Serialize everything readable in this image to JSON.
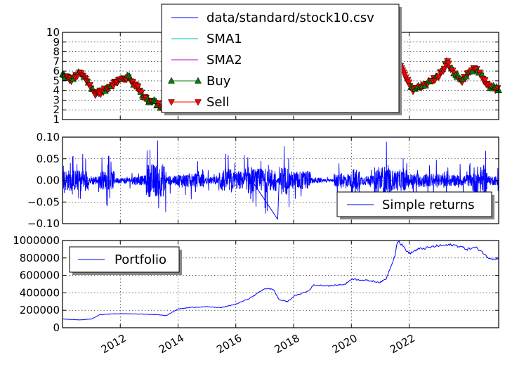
{
  "chart_data": [
    {
      "type": "line",
      "panel": "price",
      "ylim": [
        1,
        10
      ],
      "yticks": [
        "1",
        "2",
        "3",
        "4",
        "5",
        "6",
        "7",
        "8",
        "9",
        "10"
      ],
      "grid": true,
      "legend_placement": "top-center",
      "series": [
        {
          "name": "data/standard/stock10.csv",
          "color": "#0000ff",
          "points": [
            [
              2010.0,
              5.6
            ],
            [
              2010.3,
              5.1
            ],
            [
              2010.6,
              5.8
            ],
            [
              2010.9,
              4.8
            ],
            [
              2011.1,
              3.7
            ],
            [
              2011.4,
              3.9
            ],
            [
              2011.7,
              4.6
            ],
            [
              2012.0,
              5.1
            ],
            [
              2012.3,
              5.4
            ],
            [
              2012.5,
              4.6
            ],
            [
              2012.7,
              4.0
            ],
            [
              2012.8,
              3.4
            ],
            [
              2013.0,
              2.9
            ],
            [
              2013.2,
              2.8
            ],
            [
              2013.4,
              2.3
            ],
            [
              2013.6,
              2.0
            ],
            [
              2013.8,
              2.3
            ],
            [
              2013.9,
              2.6
            ],
            [
              2014.0,
              3.5
            ]
          ]
        },
        {
          "name": "SMA1",
          "color": "#00bfbf",
          "points": []
        },
        {
          "name": "SMA2",
          "color": "#bf00bf",
          "points": []
        }
      ],
      "series_right": {
        "name": "data/standard/stock10.csv",
        "points": [
          [
            2020.4,
            3.8
          ],
          [
            2020.8,
            4.3
          ],
          [
            2021.0,
            5.2
          ],
          [
            2021.1,
            6.5
          ],
          [
            2021.2,
            9.3
          ],
          [
            2021.3,
            8.0
          ],
          [
            2021.6,
            7.1
          ],
          [
            2021.9,
            5.2
          ],
          [
            2022.1,
            4.1
          ],
          [
            2022.3,
            4.3
          ],
          [
            2022.5,
            4.6
          ],
          [
            2022.8,
            5.0
          ],
          [
            2023.0,
            5.5
          ],
          [
            2023.2,
            6.2
          ],
          [
            2023.3,
            7.0
          ],
          [
            2023.5,
            6.0
          ],
          [
            2023.8,
            5.0
          ],
          [
            2024.0,
            5.5
          ],
          [
            2024.3,
            6.3
          ],
          [
            2024.5,
            5.5
          ],
          [
            2024.7,
            4.6
          ],
          [
            2024.9,
            4.3
          ],
          [
            2025.1,
            4.1
          ]
        ]
      },
      "markers_buy": {
        "name": "Buy",
        "color": "#008000"
      },
      "markers_sell": {
        "name": "Sell",
        "color": "#ff0000"
      },
      "legend": [
        {
          "label": "data/standard/stock10.csv",
          "style": "line",
          "color": "#0000ff"
        },
        {
          "label": "SMA1",
          "style": "line",
          "color": "#00bfbf"
        },
        {
          "label": "SMA2",
          "style": "line",
          "color": "#bf00bf"
        },
        {
          "label": "Buy",
          "style": "up",
          "color": "#008000"
        },
        {
          "label": "Sell",
          "style": "down",
          "color": "#ff0000"
        }
      ]
    },
    {
      "type": "line",
      "panel": "returns",
      "ylim": [
        -0.1,
        0.1
      ],
      "yticks": [
        "−0.10",
        "−0.05",
        "0.00",
        "0.05",
        "0.10"
      ],
      "grid": true,
      "legend_placement": "lower-right",
      "series": [
        {
          "name": "Simple returns",
          "color": "#0000ff"
        }
      ],
      "legend": [
        {
          "label": "Simple returns",
          "style": "line",
          "color": "#0000ff"
        }
      ]
    },
    {
      "type": "line",
      "panel": "portfolio",
      "ylim": [
        0,
        1000000
      ],
      "yticks": [
        "0",
        "200000",
        "400000",
        "600000",
        "800000",
        "1000000"
      ],
      "grid": true,
      "legend_placement": "upper-left",
      "series": [
        {
          "name": "Portfolio",
          "color": "#0000ff",
          "points": [
            [
              2010.0,
              100000
            ],
            [
              2010.3,
              95000
            ],
            [
              2010.6,
              90000
            ],
            [
              2011.0,
              100000
            ],
            [
              2011.3,
              150000
            ],
            [
              2011.8,
              160000
            ],
            [
              2012.3,
              160000
            ],
            [
              2012.8,
              155000
            ],
            [
              2013.3,
              150000
            ],
            [
              2013.6,
              140000
            ],
            [
              2014.0,
              215000
            ],
            [
              2014.5,
              235000
            ],
            [
              2015.0,
              240000
            ],
            [
              2015.5,
              230000
            ],
            [
              2016.0,
              270000
            ],
            [
              2016.5,
              340000
            ],
            [
              2017.0,
              450000
            ],
            [
              2017.3,
              440000
            ],
            [
              2017.5,
              320000
            ],
            [
              2017.8,
              300000
            ],
            [
              2018.0,
              360000
            ],
            [
              2018.5,
              420000
            ],
            [
              2018.7,
              490000
            ],
            [
              2019.3,
              480000
            ],
            [
              2019.8,
              500000
            ],
            [
              2020.0,
              560000
            ],
            [
              2020.6,
              540000
            ],
            [
              2021.0,
              520000
            ],
            [
              2021.2,
              560000
            ],
            [
              2021.5,
              820000
            ],
            [
              2021.6,
              1000000
            ],
            [
              2021.8,
              930000
            ],
            [
              2022.0,
              850000
            ],
            [
              2022.3,
              900000
            ],
            [
              2022.7,
              920000
            ],
            [
              2023.0,
              940000
            ],
            [
              2023.5,
              950000
            ],
            [
              2023.8,
              930000
            ],
            [
              2024.0,
              900000
            ],
            [
              2024.3,
              920000
            ],
            [
              2024.5,
              880000
            ],
            [
              2024.7,
              810000
            ],
            [
              2024.9,
              790000
            ],
            [
              2025.1,
              790000
            ]
          ]
        }
      ],
      "legend": [
        {
          "label": "Portfolio",
          "style": "line",
          "color": "#0000ff"
        }
      ]
    }
  ],
  "x_axis": {
    "xlim": [
      2010.0,
      2025.1
    ],
    "ticks": [
      {
        "value": 2012.0,
        "label": "2012"
      },
      {
        "value": 2014.0,
        "label": "2014"
      },
      {
        "value": 2016.0,
        "label": "2016"
      },
      {
        "value": 2018.0,
        "label": "2018"
      },
      {
        "value": 2020.0,
        "label": "2020"
      },
      {
        "value": 2022.0,
        "label": "2022"
      }
    ],
    "label_rotation": "30deg"
  }
}
